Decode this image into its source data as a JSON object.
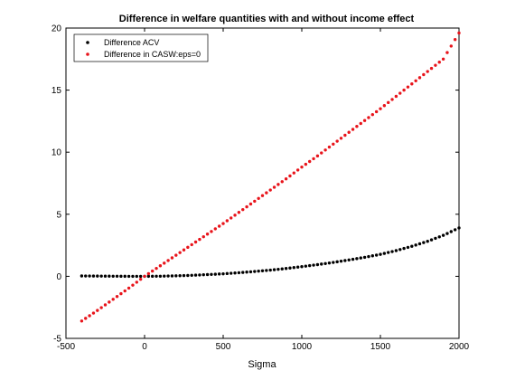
{
  "chart_data": {
    "type": "scatter",
    "title": "Difference in welfare quantities with and without income effect",
    "xlabel": "Sigma",
    "ylabel": "",
    "xlim": [
      -500,
      2000
    ],
    "ylim": [
      -5,
      20
    ],
    "xticks": [
      -500,
      0,
      500,
      1000,
      1500,
      2000
    ],
    "yticks": [
      -5,
      0,
      5,
      10,
      15,
      20
    ],
    "grid": false,
    "legend_position": "top-left",
    "series": [
      {
        "name": "Difference ACV",
        "color": "#000000",
        "x": [
          -400,
          -300,
          -200,
          -100,
          0,
          100,
          200,
          300,
          400,
          500,
          600,
          700,
          800,
          900,
          1000,
          1100,
          1200,
          1300,
          1400,
          1500,
          1600,
          1700,
          1800,
          1900,
          2000
        ],
        "y": [
          0.03,
          0.02,
          0.01,
          0.0,
          0.0,
          0.01,
          0.04,
          0.08,
          0.14,
          0.2,
          0.29,
          0.39,
          0.5,
          0.63,
          0.78,
          0.94,
          1.12,
          1.32,
          1.53,
          1.77,
          2.07,
          2.42,
          2.82,
          3.3,
          3.9
        ]
      },
      {
        "name": "Difference in CASW:eps=0",
        "color": "#e8141b",
        "x": [
          -400,
          -300,
          -200,
          -100,
          0,
          100,
          200,
          300,
          400,
          500,
          600,
          700,
          800,
          900,
          1000,
          1100,
          1200,
          1300,
          1400,
          1500,
          1600,
          1700,
          1800,
          1900,
          2000
        ],
        "y": [
          -3.6,
          -2.75,
          -1.85,
          -0.95,
          0.0,
          0.85,
          1.7,
          2.55,
          3.4,
          4.25,
          5.15,
          6.05,
          6.95,
          7.85,
          8.8,
          9.7,
          10.65,
          11.6,
          12.55,
          13.5,
          14.5,
          15.5,
          16.5,
          17.5,
          19.6
        ]
      }
    ]
  }
}
